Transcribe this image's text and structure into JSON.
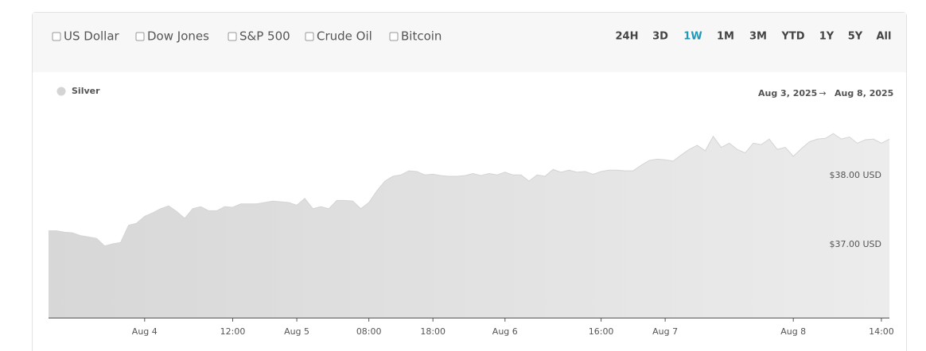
{
  "toolbar": {
    "compare": [
      "US Dollar",
      "Dow Jones",
      "S&P 500",
      "Crude Oil",
      "Bitcoin"
    ],
    "ranges": [
      "24H",
      "3D",
      "1W",
      "1M",
      "3M",
      "YTD",
      "1Y",
      "5Y",
      "All"
    ],
    "active_index": 2
  },
  "date_range": {
    "from": "Aug 3, 2025",
    "separator": "→",
    "to": "Aug 8, 2025"
  },
  "chart_data": {
    "type": "area",
    "grid": false,
    "legend": "top-left",
    "categories": [
      null,
      null,
      null,
      null,
      null,
      null,
      null,
      null,
      null,
      null,
      null,
      null,
      "Aug 4",
      null,
      null,
      null,
      null,
      null,
      null,
      null,
      null,
      null,
      null,
      "12:00",
      null,
      null,
      null,
      null,
      null,
      null,
      null,
      "Aug 5",
      null,
      null,
      null,
      null,
      null,
      null,
      null,
      null,
      "08:00",
      null,
      null,
      null,
      null,
      null,
      null,
      null,
      "18:00",
      null,
      null,
      null,
      null,
      null,
      null,
      null,
      null,
      "Aug 6",
      null,
      null,
      null,
      null,
      null,
      null,
      null,
      null,
      null,
      null,
      null,
      "16:00",
      null,
      null,
      null,
      null,
      null,
      null,
      null,
      "Aug 7",
      null,
      null,
      null,
      null,
      null,
      null,
      null,
      null,
      null,
      null,
      null,
      null,
      null,
      null,
      null,
      "Aug 8",
      null,
      null,
      null,
      null,
      null,
      null,
      null,
      null,
      null,
      null,
      "14:00",
      null
    ],
    "series": [
      {
        "name": "Silver",
        "color": "#d4d4d4",
        "values": [
          37.2,
          37.2,
          37.18,
          37.17,
          37.13,
          37.11,
          37.09,
          36.98,
          37.01,
          37.03,
          37.28,
          37.31,
          37.41,
          37.46,
          37.52,
          37.56,
          37.48,
          37.38,
          37.52,
          37.55,
          37.49,
          37.49,
          37.55,
          37.54,
          37.59,
          37.59,
          37.59,
          37.61,
          37.63,
          37.62,
          37.61,
          37.57,
          37.67,
          37.52,
          37.55,
          37.52,
          37.64,
          37.64,
          37.63,
          37.52,
          37.61,
          37.78,
          37.92,
          37.99,
          38.01,
          38.07,
          38.06,
          38.01,
          38.02,
          38.0,
          37.99,
          37.99,
          38.0,
          38.03,
          38.0,
          38.03,
          38.01,
          38.05,
          38.01,
          38.01,
          37.92,
          38.01,
          37.99,
          38.09,
          38.05,
          38.08,
          38.05,
          38.06,
          38.02,
          38.06,
          38.08,
          38.08,
          38.07,
          38.07,
          38.15,
          38.22,
          38.24,
          38.23,
          38.21,
          38.3,
          38.38,
          38.44,
          38.36,
          38.57,
          38.41,
          38.47,
          38.38,
          38.33,
          38.47,
          38.45,
          38.53,
          38.38,
          38.41,
          38.28,
          38.39,
          38.49,
          38.53,
          38.54,
          38.61,
          38.53,
          38.56,
          38.47,
          38.52,
          38.53,
          38.47,
          38.53
        ]
      }
    ],
    "ylim": [
      35.94,
      39.05
    ],
    "yticks": [
      {
        "value": 37,
        "label": "$37.00 USD"
      },
      {
        "value": 38,
        "label": "$38.00 USD"
      }
    ]
  }
}
